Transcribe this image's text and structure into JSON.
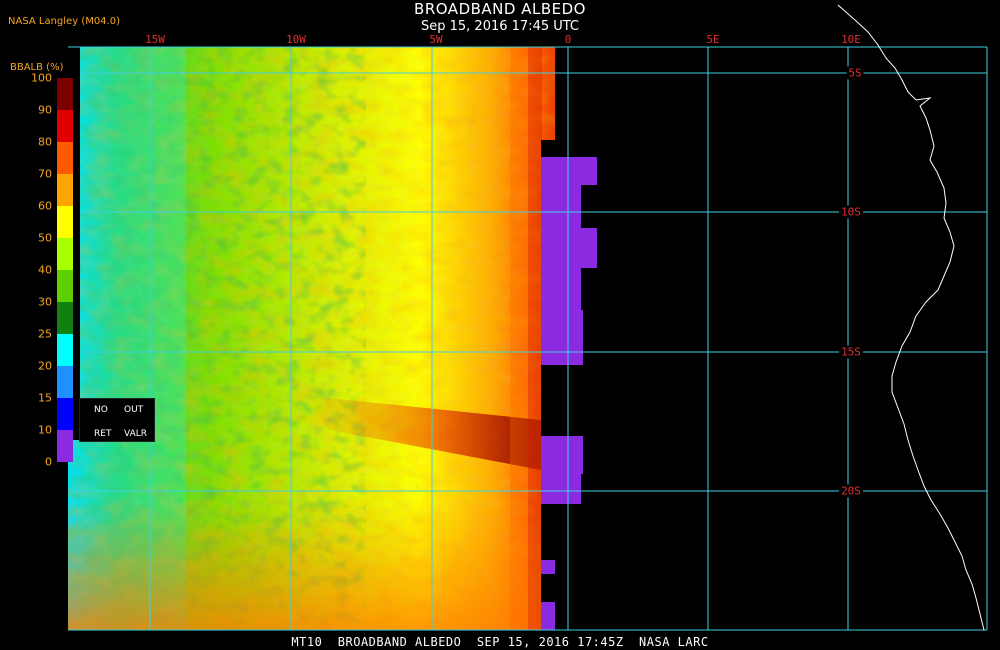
{
  "header": {
    "title": "BROADBAND ALBEDO",
    "subtitle": "Sep 15, 2016 17:45 UTC",
    "source": "NASA Langley (M04.0)"
  },
  "footer": {
    "text": "MT10  BROADBAND ALBEDO  SEP 15, 2016 17:45Z  NASA LARC"
  },
  "map": {
    "lon_labels": [
      "15W",
      "10W",
      "5W",
      "0",
      "5E",
      "10E"
    ],
    "lat_labels": [
      "5S",
      "10S",
      "15S",
      "20S"
    ],
    "grid_color": "#3fd0e0",
    "label_color": "#e03030",
    "no_data_color": "#8a2be2",
    "coastline_color": "#ffffff"
  },
  "colorbar": {
    "title": "BBALB (%)",
    "ticks": [
      "100",
      "90",
      "80",
      "70",
      "60",
      "50",
      "40",
      "30",
      "25",
      "20",
      "15",
      "10",
      "0"
    ],
    "colors": [
      "#7a0000",
      "#e00000",
      "#ff5a00",
      "#ffa500",
      "#ffff00",
      "#a8ff00",
      "#5cd000",
      "#108010",
      "#00ffff",
      "#1e90ff",
      "#0000ff",
      "#8a2be2"
    ],
    "legend": {
      "no": "NO",
      "out": "OUT",
      "ret": "RET",
      "valr": "VALR"
    }
  }
}
